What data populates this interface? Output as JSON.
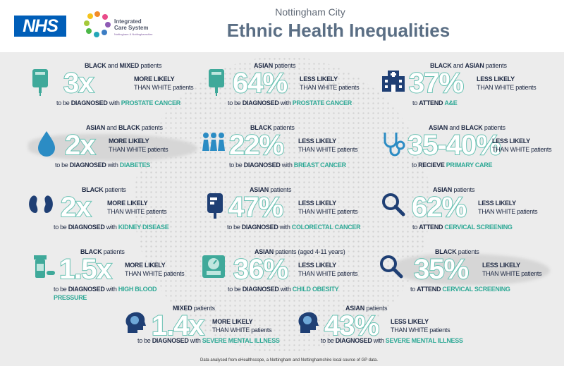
{
  "header": {
    "nhs_logo": "NHS",
    "ics_name_line1": "Integrated",
    "ics_name_line2": "Care System",
    "ics_sub": "Nottingham & Nottinghamshire",
    "title_small": "Nottingham City",
    "title_big": "Ethnic Health Inequalities"
  },
  "colors": {
    "accent": "#6fc4b6",
    "condition": "#2fa996",
    "navy": "#1f2a44",
    "nhs_blue": "#005eb8"
  },
  "stats": [
    {
      "who_bold1": "BLACK",
      "who_mid": " and ",
      "who_bold2": "MIXED",
      "who_tail": " patients",
      "value": "3x",
      "cmp1": "MORE LIKELY",
      "cmp2": "THAN WHITE patients",
      "pre": "to be ",
      "verb": "DIAGNOSED",
      "post": " with ",
      "condition": "PROSTATE CANCER",
      "icon": "iv-drip-icon"
    },
    {
      "who_bold1": "ASIAN",
      "who_mid": " patients",
      "who_bold2": "",
      "who_tail": "",
      "value": "64%",
      "cmp1": "LESS LIKELY",
      "cmp2": "THAN WHITE patients",
      "pre": "to be ",
      "verb": "DIAGNOSED",
      "post": " with ",
      "condition": "PROSTATE CANCER",
      "icon": "iv-drip-icon"
    },
    {
      "who_bold1": "BLACK",
      "who_mid": " and ",
      "who_bold2": "ASIAN",
      "who_tail": " patients",
      "value": "37%",
      "cmp1": "LESS LIKELY",
      "cmp2": "THAN WHITE patients",
      "pre": "to ",
      "verb": "ATTEND",
      "post": " ",
      "condition": "A&E",
      "icon": "hospital-icon"
    },
    {
      "who_bold1": "ASIAN",
      "who_mid": " and ",
      "who_bold2": "BLACK",
      "who_tail": " patients",
      "value": "2x",
      "cmp1": "MORE LIKELY",
      "cmp2": "THAN WHITE patients",
      "pre": "to be ",
      "verb": "DIAGNOSED",
      "post": " with ",
      "condition": "DIABETES",
      "icon": "blood-drop-icon"
    },
    {
      "who_bold1": "BLACK",
      "who_mid": " patients",
      "who_bold2": "",
      "who_tail": "",
      "value": "22%",
      "cmp1": "LESS LIKELY",
      "cmp2": "THAN WHITE patients",
      "pre": "to be ",
      "verb": "DIAGNOSED",
      "post": " with ",
      "condition": "BREAST CANCER",
      "icon": "women-group-icon"
    },
    {
      "who_bold1": "ASIAN",
      "who_mid": " and ",
      "who_bold2": "BLACK",
      "who_tail": " patients",
      "value": "35-40%",
      "cmp1": "LESS LIKELY",
      "cmp2": "THAN WHITE patients",
      "pre": "to ",
      "verb": "RECIEVE",
      "post": " ",
      "condition": "PRIMARY CARE",
      "icon": "stethoscope-icon"
    },
    {
      "who_bold1": "BLACK",
      "who_mid": " patients",
      "who_bold2": "",
      "who_tail": "",
      "value": "2x",
      "cmp1": "MORE LIKELY",
      "cmp2": "THAN WHITE patients",
      "pre": "to be ",
      "verb": "DIAGNOSED",
      "post": " with ",
      "condition": "KIDNEY DISEASE",
      "icon": "kidneys-icon"
    },
    {
      "who_bold1": "ASIAN",
      "who_mid": " patients",
      "who_bold2": "",
      "who_tail": "",
      "value": "47%",
      "cmp1": "LESS LIKELY",
      "cmp2": "THAN WHITE patients",
      "pre": "to be ",
      "verb": "DIAGNOSED",
      "post": " with ",
      "condition": "COLORECTAL CANCER",
      "icon": "iv-bag-icon"
    },
    {
      "who_bold1": "ASIAN",
      "who_mid": " patients",
      "who_bold2": "",
      "who_tail": "",
      "value": "62%",
      "cmp1": "LESS LIKELY",
      "cmp2": "THAN WHITE patients",
      "pre": "to ",
      "verb": "ATTEND",
      "post": " ",
      "condition": "CERVICAL SCREENING",
      "icon": "magnifier-icon"
    },
    {
      "who_bold1": "BLACK",
      "who_mid": " patients",
      "who_bold2": "",
      "who_tail": "",
      "value": "1.5x",
      "cmp1": "MORE LIKELY",
      "cmp2": "THAN WHITE patients",
      "pre": "to be ",
      "verb": "DIAGNOSED",
      "post": " with ",
      "condition": "HIGH BLOOD",
      "condition2": "PRESSURE",
      "icon": "pill-bottle-icon"
    },
    {
      "who_bold1": "ASIAN",
      "who_mid": " patients (aged 4-11 years)",
      "who_bold2": "",
      "who_tail": "",
      "value": "36%",
      "cmp1": "LESS LIKELY",
      "cmp2": "THAN WHITE patients",
      "pre": "to be ",
      "verb": "DIAGNOSED",
      "post": " with ",
      "condition": "CHILD OBESITY",
      "icon": "scale-icon"
    },
    {
      "who_bold1": "BLACK",
      "who_mid": " patients",
      "who_bold2": "",
      "who_tail": "",
      "value": "35%",
      "cmp1": "LESS LIKELY",
      "cmp2": "THAN WHITE patients",
      "pre": "to ",
      "verb": "ATTEND",
      "post": " ",
      "condition": "CERVICAL SCREENING",
      "icon": "magnifier-icon"
    },
    {
      "who_bold1": "MIXED",
      "who_mid": " patients",
      "who_bold2": "",
      "who_tail": "",
      "value": "1.4x",
      "cmp1": "MORE LIKELY",
      "cmp2": "THAN WHITE patients",
      "pre": "to be ",
      "verb": "DIAGNOSED",
      "post": " with ",
      "condition": "SEVERE MENTAL ILLNESS",
      "icon": "brain-head-icon"
    },
    {
      "who_bold1": "ASIAN",
      "who_mid": " patients",
      "who_bold2": "",
      "who_tail": "",
      "value": "43%",
      "cmp1": "LESS LIKELY",
      "cmp2": "THAN WHITE patients",
      "pre": "to be ",
      "verb": "DIAGNOSED",
      "post": " with ",
      "condition": "SEVERE MENTAL ILLNESS",
      "icon": "brain-head-icon"
    }
  ],
  "footer": "Data analysed from eHealthscope, a Nottingham and Nottinghamshire local source of GP data."
}
